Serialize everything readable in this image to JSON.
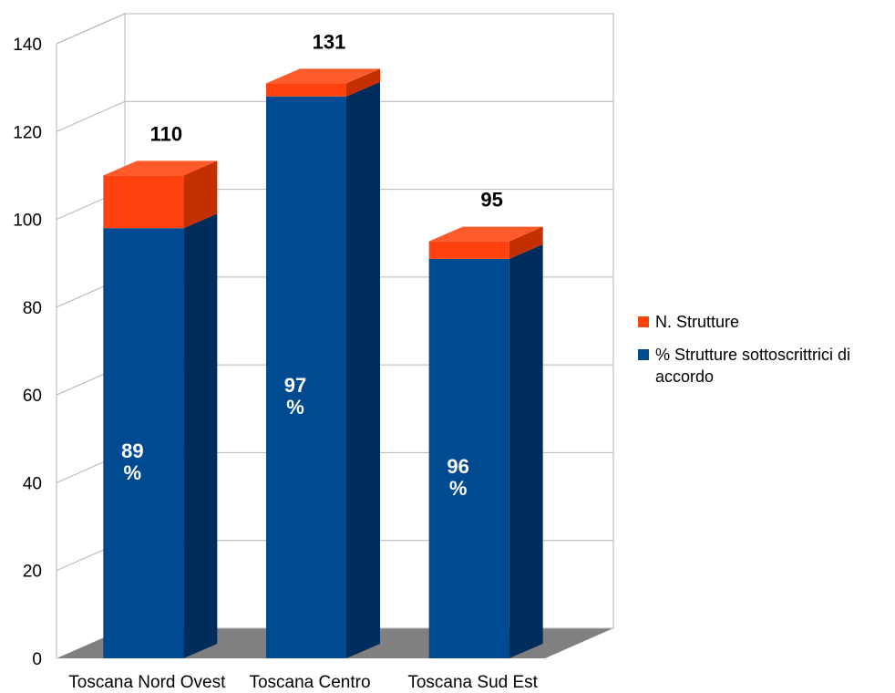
{
  "chart_data": {
    "type": "bar",
    "stacked": true,
    "three_d": true,
    "categories": [
      "Toscana Nord Ovest",
      "Toscana Centro",
      "Toscana Sud Est"
    ],
    "series": [
      {
        "name": "% Strutture sottoscrittrici di accordo",
        "values": [
          98,
          128,
          91
        ],
        "data_labels": [
          "89\n%",
          "97\n%",
          "96\n%"
        ],
        "color": "#004a91"
      },
      {
        "name": "N. Strutture",
        "values": [
          12,
          3,
          4
        ],
        "color": "#ff420e"
      }
    ],
    "totals": [
      110,
      131,
      95
    ],
    "ylim": [
      0,
      140
    ],
    "yticks": [
      0,
      20,
      40,
      60,
      80,
      100,
      120,
      140
    ],
    "grid": true,
    "legend": "right",
    "legend_entries": [
      {
        "label": "N. Strutture",
        "color": "#ff420e"
      },
      {
        "label": "% Strutture sottoscrittrici di accordo",
        "color": "#004a91"
      }
    ]
  }
}
